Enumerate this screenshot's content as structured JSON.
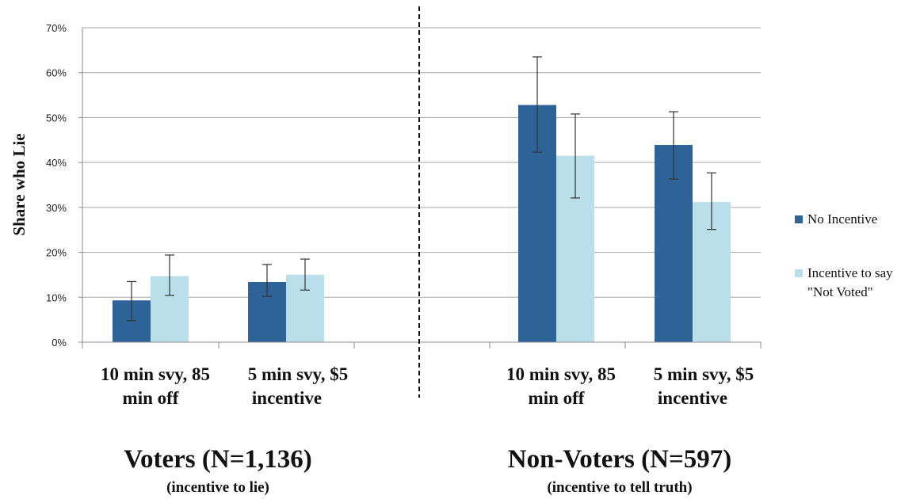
{
  "chart_data": {
    "type": "bar",
    "ylabel": "Share who Lie",
    "ylim": [
      0,
      70
    ],
    "y_ticks": [
      "0%",
      "10%",
      "20%",
      "30%",
      "40%",
      "50%",
      "60%",
      "70%"
    ],
    "grid": true,
    "legend_position": "right",
    "categories": [
      [
        "10 min svy, 85",
        "min off"
      ],
      [
        "5 min svy, $5",
        "incentive"
      ],
      [
        "10 min svy, 85",
        "min off"
      ],
      [
        "5 min svy, $5",
        "incentive"
      ]
    ],
    "groups": [
      {
        "title": "Voters (N=1,136)",
        "subtitle": "(incentive to lie)"
      },
      {
        "title": "Non-Voters (N=597)",
        "subtitle": "(incentive to tell truth)"
      }
    ],
    "series": [
      {
        "name": "No Incentive",
        "color": "#2e6398",
        "values": [
          9.3,
          13.4,
          52.8,
          43.9
        ],
        "error_low": [
          4.8,
          10.2,
          42.3,
          36.3
        ],
        "error_high": [
          13.5,
          17.3,
          63.5,
          51.3
        ]
      },
      {
        "name": "Incentive to say \"Not Voted\"",
        "name_lines": [
          "Incentive to say",
          "\"Not Voted\""
        ],
        "color": "#b9e0ea",
        "values": [
          14.7,
          15.0,
          41.5,
          31.2
        ],
        "error_low": [
          10.4,
          11.6,
          32.1,
          25.1
        ],
        "error_high": [
          19.4,
          18.5,
          50.8,
          37.7
        ]
      }
    ]
  }
}
